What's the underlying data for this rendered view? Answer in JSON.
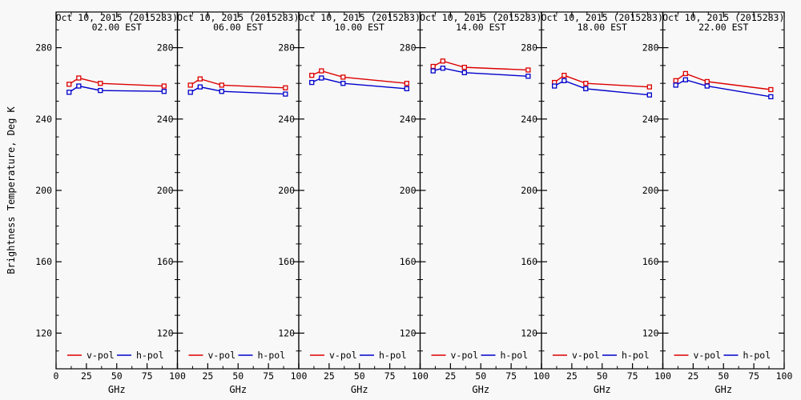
{
  "figure": {
    "y_axis_title": "Brightness Temperature, Deg K",
    "x_axis_title": "GHz",
    "background": "#f8f8f8",
    "axis_color": "#000000",
    "y_ticks": [
      280,
      240,
      200,
      160,
      120
    ],
    "x_ticks": [
      0,
      25,
      50,
      75,
      100
    ],
    "legend": [
      {
        "label": "v-pol",
        "color": "#dd0000"
      },
      {
        "label": "h-pol",
        "color": "#0000cc"
      }
    ]
  },
  "chart_data": [
    {
      "type": "line",
      "title": "Oct 10, 2015 (2015283)",
      "subtitle": "02.00 EST",
      "xlabel": "GHz",
      "ylabel": "Brightness Temperature, Deg K",
      "xlim": [
        0,
        100
      ],
      "ylim": [
        100,
        300
      ],
      "x": [
        10.7,
        18.7,
        36.5,
        89.0
      ],
      "series": [
        {
          "name": "v-pol",
          "color": "#dd0000",
          "values": [
            259.5,
            263.0,
            260.0,
            258.5
          ]
        },
        {
          "name": "h-pol",
          "color": "#0000cc",
          "values": [
            255.0,
            258.5,
            256.0,
            255.5
          ]
        }
      ]
    },
    {
      "type": "line",
      "title": "Oct 10, 2015 (2015283)",
      "subtitle": "06.00 EST",
      "xlabel": "GHz",
      "ylabel": "Brightness Temperature, Deg K",
      "xlim": [
        0,
        100
      ],
      "ylim": [
        100,
        300
      ],
      "x": [
        10.7,
        18.7,
        36.5,
        89.0
      ],
      "series": [
        {
          "name": "v-pol",
          "color": "#dd0000",
          "values": [
            259.0,
            262.5,
            259.0,
            257.5
          ]
        },
        {
          "name": "h-pol",
          "color": "#0000cc",
          "values": [
            255.0,
            258.0,
            255.5,
            254.0
          ]
        }
      ]
    },
    {
      "type": "line",
      "title": "Oct 10, 2015 (2015283)",
      "subtitle": "10.00 EST",
      "xlabel": "GHz",
      "ylabel": "Brightness Temperature, Deg K",
      "xlim": [
        0,
        100
      ],
      "ylim": [
        100,
        300
      ],
      "x": [
        10.7,
        18.7,
        36.5,
        89.0
      ],
      "series": [
        {
          "name": "v-pol",
          "color": "#dd0000",
          "values": [
            264.5,
            267.0,
            263.5,
            260.0
          ]
        },
        {
          "name": "h-pol",
          "color": "#0000cc",
          "values": [
            260.5,
            263.0,
            260.0,
            257.0
          ]
        }
      ]
    },
    {
      "type": "line",
      "title": "Oct 10, 2015 (2015283)",
      "subtitle": "14.00 EST",
      "xlabel": "GHz",
      "ylabel": "Brightness Temperature, Deg K",
      "xlim": [
        0,
        100
      ],
      "ylim": [
        100,
        300
      ],
      "x": [
        10.7,
        18.7,
        36.5,
        89.0
      ],
      "series": [
        {
          "name": "v-pol",
          "color": "#dd0000",
          "values": [
            269.5,
            272.5,
            269.0,
            267.5
          ]
        },
        {
          "name": "h-pol",
          "color": "#0000cc",
          "values": [
            267.0,
            268.5,
            266.0,
            264.0
          ]
        }
      ]
    },
    {
      "type": "line",
      "title": "Oct 10, 2015 (2015283)",
      "subtitle": "18.00 EST",
      "xlabel": "GHz",
      "ylabel": "Brightness Temperature, Deg K",
      "xlim": [
        0,
        100
      ],
      "ylim": [
        100,
        300
      ],
      "x": [
        10.7,
        18.7,
        36.5,
        89.0
      ],
      "series": [
        {
          "name": "v-pol",
          "color": "#dd0000",
          "values": [
            260.5,
            264.5,
            260.0,
            258.0
          ]
        },
        {
          "name": "h-pol",
          "color": "#0000cc",
          "values": [
            258.5,
            261.5,
            257.0,
            253.5
          ]
        }
      ]
    },
    {
      "type": "line",
      "title": "Oct 10, 2015 (2015283)",
      "subtitle": "22.00 EST",
      "xlabel": "GHz",
      "ylabel": "Brightness Temperature, Deg K",
      "xlim": [
        0,
        100
      ],
      "ylim": [
        100,
        300
      ],
      "x": [
        10.7,
        18.7,
        36.5,
        89.0
      ],
      "series": [
        {
          "name": "v-pol",
          "color": "#dd0000",
          "values": [
            261.5,
            265.5,
            261.0,
            256.5
          ]
        },
        {
          "name": "h-pol",
          "color": "#0000cc",
          "values": [
            259.0,
            262.0,
            258.5,
            252.5
          ]
        }
      ]
    }
  ]
}
